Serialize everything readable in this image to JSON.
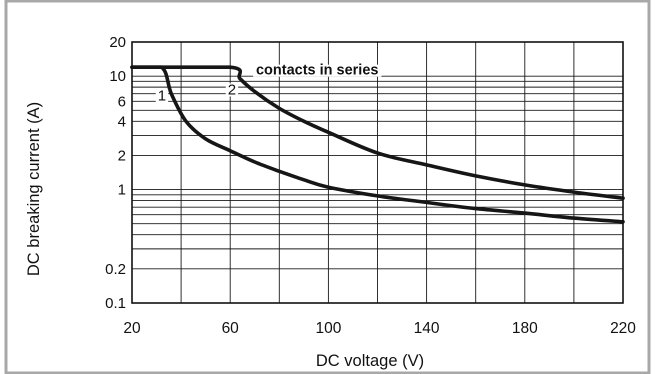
{
  "chart_data": {
    "type": "line",
    "title": "",
    "xlabel": "DC voltage (V)",
    "ylabel": "DC breaking current (A)",
    "x_scale": "linear",
    "y_scale": "log",
    "xlim": [
      20,
      220
    ],
    "ylim": [
      0.1,
      20
    ],
    "grid": true,
    "x_ticks": [
      20,
      60,
      100,
      140,
      180,
      220
    ],
    "x_tick_labels": [
      "20",
      "60",
      "100",
      "140",
      "180",
      "220"
    ],
    "y_ticks": [
      0.1,
      0.2,
      1,
      2,
      4,
      6,
      10,
      20
    ],
    "y_tick_labels": [
      "0.1",
      "0.2",
      "1",
      "2",
      "4",
      "6",
      "10",
      "20"
    ],
    "annotation": "contacts in series",
    "series": [
      {
        "label": "1",
        "points": [
          [
            20,
            12
          ],
          [
            32,
            12
          ],
          [
            36,
            7
          ],
          [
            42,
            4
          ],
          [
            50,
            2.8
          ],
          [
            60,
            2.2
          ],
          [
            70,
            1.75
          ],
          [
            80,
            1.45
          ],
          [
            90,
            1.22
          ],
          [
            100,
            1.05
          ],
          [
            120,
            0.88
          ],
          [
            140,
            0.77
          ],
          [
            160,
            0.68
          ],
          [
            180,
            0.62
          ],
          [
            200,
            0.56
          ],
          [
            220,
            0.52
          ]
        ]
      },
      {
        "label": "2",
        "points": [
          [
            20,
            12
          ],
          [
            60,
            12
          ],
          [
            64,
            9.5
          ],
          [
            70,
            7.3
          ],
          [
            80,
            5.2
          ],
          [
            90,
            4
          ],
          [
            100,
            3.2
          ],
          [
            120,
            2.1
          ],
          [
            140,
            1.65
          ],
          [
            160,
            1.32
          ],
          [
            180,
            1.1
          ],
          [
            200,
            0.95
          ],
          [
            220,
            0.84
          ]
        ]
      }
    ]
  },
  "colors": {
    "frame_border": "#a8a8a8",
    "grid": "#1a1a1a",
    "curve": "#161616",
    "text": "#111111"
  }
}
